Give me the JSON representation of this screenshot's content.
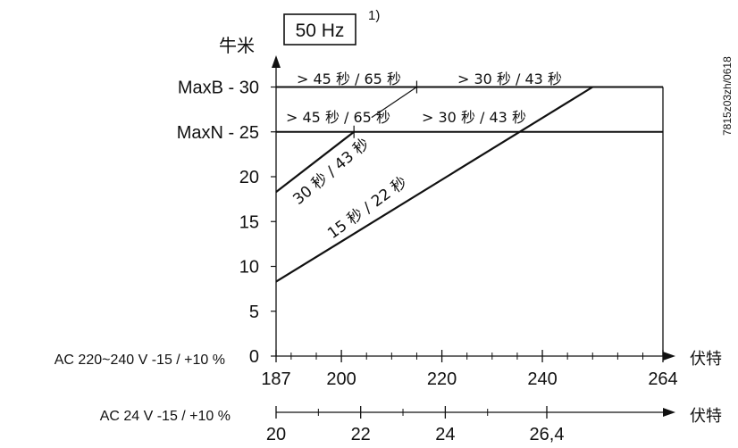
{
  "chart_data": {
    "type": "line",
    "frequency_label": "50 Hz",
    "footnote": "1)",
    "drawing_code": "7815z03zh/0618",
    "y_axis": {
      "label": "牛米",
      "ticks": [
        {
          "value": 0,
          "label": "0"
        },
        {
          "value": 5,
          "label": "5"
        },
        {
          "value": 10,
          "label": "10"
        },
        {
          "value": 15,
          "label": "15"
        },
        {
          "value": 20,
          "label": "20"
        },
        {
          "value": 25,
          "label": "MaxN - 25"
        },
        {
          "value": 30,
          "label": "MaxB - 30"
        }
      ],
      "range": [
        0,
        33
      ]
    },
    "x_axis_main": {
      "caption": "AC 220~240 V -15 / +10 %",
      "unit": "伏特",
      "range": [
        187,
        264
      ],
      "tick_labels": [
        "187",
        "200",
        "220",
        "240",
        "264"
      ],
      "tick_values": [
        187,
        200,
        220,
        240,
        264
      ],
      "minor_ticks": [
        190,
        195,
        205,
        210,
        215,
        225,
        230,
        235,
        245,
        250,
        255,
        260
      ]
    },
    "x_axis_secondary": {
      "caption": "AC 24 V -15 / +10 %",
      "unit": "伏特",
      "range": [
        20,
        26.4
      ],
      "tick_labels": [
        "20",
        "22",
        "24",
        "26,4"
      ],
      "tick_values": [
        20,
        22,
        24,
        26.4
      ],
      "minor_ticks": [
        21,
        23,
        25
      ]
    },
    "reference_lines": [
      {
        "name": "MaxB",
        "y": 30
      },
      {
        "name": "MaxN",
        "y": 25
      }
    ],
    "series": [
      {
        "label": "15 秒 / 22 秒",
        "points": [
          [
            187,
            8.3
          ],
          [
            250,
            30
          ]
        ]
      },
      {
        "label": "30 秒 / 43 秒",
        "points": [
          [
            187,
            18.3
          ],
          [
            202.5,
            25
          ]
        ]
      }
    ],
    "region_labels": {
      "maxb_left": "> 45 秒 / 65 秒",
      "maxb_right": "> 30 秒 / 43 秒",
      "maxn_left": "> 45 秒 / 65 秒",
      "maxn_right": "> 30 秒 / 43 秒"
    },
    "grid": false
  }
}
